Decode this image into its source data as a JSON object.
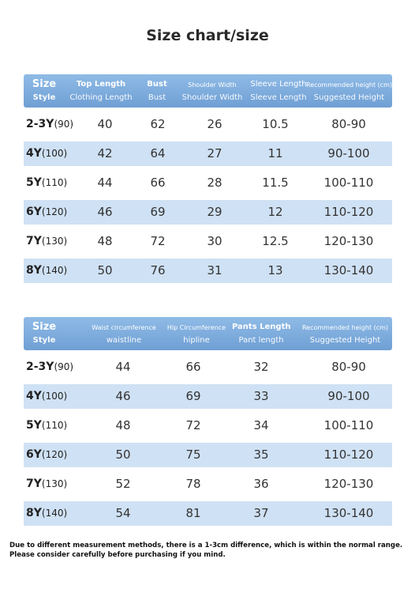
{
  "title": "Size chart/size",
  "table1": {
    "header": [
      {
        "en": "Size",
        "sub": "Style"
      },
      {
        "en": "Top Length",
        "sub": "Clothing Length"
      },
      {
        "en": "Bust",
        "sub": "Bust"
      },
      {
        "en": "Shoulder Width",
        "sub": "Shoulder Width"
      },
      {
        "en": "Sleeve Length",
        "sub": "Sleeve Length"
      },
      {
        "en": "Recommended height (cm)",
        "sub": "Suggested Height"
      }
    ],
    "rows": [
      {
        "size": "2-3Y",
        "cm": "(90)",
        "vals": [
          "40",
          "62",
          "26",
          "10.5",
          "80-90"
        ]
      },
      {
        "size": "4Y",
        "cm": "(100)",
        "vals": [
          "42",
          "64",
          "27",
          "11",
          "90-100"
        ]
      },
      {
        "size": "5Y",
        "cm": "(110)",
        "vals": [
          "44",
          "66",
          "28",
          "11.5",
          "100-110"
        ]
      },
      {
        "size": "6Y",
        "cm": "(120)",
        "vals": [
          "46",
          "69",
          "29",
          "12",
          "110-120"
        ]
      },
      {
        "size": "7Y",
        "cm": "(130)",
        "vals": [
          "48",
          "72",
          "30",
          "12.5",
          "120-130"
        ]
      },
      {
        "size": "8Y",
        "cm": "(140)",
        "vals": [
          "50",
          "76",
          "31",
          "13",
          "130-140"
        ]
      }
    ]
  },
  "table2": {
    "header": [
      {
        "en": "Size",
        "sub": "Style"
      },
      {
        "en": "Waist circumference",
        "sub": "waistline"
      },
      {
        "en": "Hip Circumference",
        "sub": "hipline"
      },
      {
        "en": "Pants Length",
        "sub": "Pant length"
      },
      {
        "en": "Recommended height (cm)",
        "sub": "Suggested Height"
      }
    ],
    "rows": [
      {
        "size": "2-3Y",
        "cm": "(90)",
        "vals": [
          "44",
          "66",
          "32",
          "80-90"
        ]
      },
      {
        "size": "4Y",
        "cm": "(100)",
        "vals": [
          "46",
          "69",
          "33",
          "90-100"
        ]
      },
      {
        "size": "5Y",
        "cm": "(110)",
        "vals": [
          "48",
          "72",
          "34",
          "100-110"
        ]
      },
      {
        "size": "6Y",
        "cm": "(120)",
        "vals": [
          "50",
          "75",
          "35",
          "110-120"
        ]
      },
      {
        "size": "7Y",
        "cm": "(130)",
        "vals": [
          "52",
          "78",
          "36",
          "120-130"
        ]
      },
      {
        "size": "8Y",
        "cm": "(140)",
        "vals": [
          "54",
          "81",
          "37",
          "130-140"
        ]
      }
    ]
  },
  "note": "Due to different measurement methods, there is a 1-3cm difference, which is within the normal range. Please consider carefully before purchasing if you mind."
}
